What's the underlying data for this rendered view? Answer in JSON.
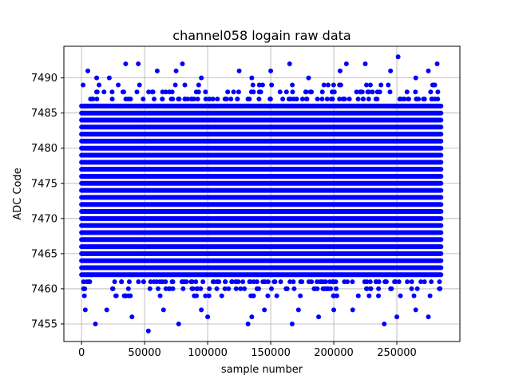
{
  "chart_data": {
    "type": "scatter",
    "title": "channel058 logain raw data",
    "xlabel": "sample number",
    "ylabel": "ADC Code",
    "xlim": [
      -14000,
      300000
    ],
    "ylim": [
      7452.5,
      7494.5
    ],
    "x_ticks": [
      0,
      50000,
      100000,
      150000,
      200000,
      250000
    ],
    "x_tick_labels": [
      "0",
      "50000",
      "100000",
      "150000",
      "200000",
      "250000"
    ],
    "y_ticks": [
      7455,
      7460,
      7465,
      7470,
      7475,
      7480,
      7485,
      7490
    ],
    "y_tick_labels": [
      "7455",
      "7460",
      "7465",
      "7470",
      "7475",
      "7480",
      "7485",
      "7490"
    ],
    "grid": true,
    "marker_color": "#0000ff",
    "marker": "dot",
    "series": [
      {
        "x_range": [
          0,
          285000
        ],
        "dense_band": [
          7462,
          7486
        ],
        "upper_outliers": [
          [
            5000,
            7491
          ],
          [
            12000,
            7490
          ],
          [
            22000,
            7490
          ],
          [
            35000,
            7492
          ],
          [
            45000,
            7492
          ],
          [
            60000,
            7491
          ],
          [
            75000,
            7491
          ],
          [
            80000,
            7492
          ],
          [
            95000,
            7490
          ],
          [
            125000,
            7491
          ],
          [
            135000,
            7490
          ],
          [
            150000,
            7491
          ],
          [
            165000,
            7492
          ],
          [
            180000,
            7490
          ],
          [
            205000,
            7491
          ],
          [
            210000,
            7492
          ],
          [
            225000,
            7492
          ],
          [
            245000,
            7491
          ],
          [
            251000,
            7493
          ],
          [
            265000,
            7490
          ],
          [
            275000,
            7491
          ],
          [
            282000,
            7492
          ]
        ],
        "lower_outliers": [
          [
            3000,
            7457
          ],
          [
            11000,
            7455
          ],
          [
            20000,
            7457
          ],
          [
            40000,
            7456
          ],
          [
            53000,
            7454
          ],
          [
            65000,
            7457
          ],
          [
            77000,
            7455
          ],
          [
            95000,
            7457
          ],
          [
            100000,
            7456
          ],
          [
            132000,
            7455
          ],
          [
            135000,
            7456
          ],
          [
            145000,
            7457
          ],
          [
            167000,
            7455
          ],
          [
            172000,
            7457
          ],
          [
            188000,
            7456
          ],
          [
            200000,
            7457
          ],
          [
            215000,
            7457
          ],
          [
            240000,
            7455
          ],
          [
            250000,
            7456
          ],
          [
            265000,
            7457
          ],
          [
            275000,
            7456
          ]
        ]
      }
    ]
  }
}
